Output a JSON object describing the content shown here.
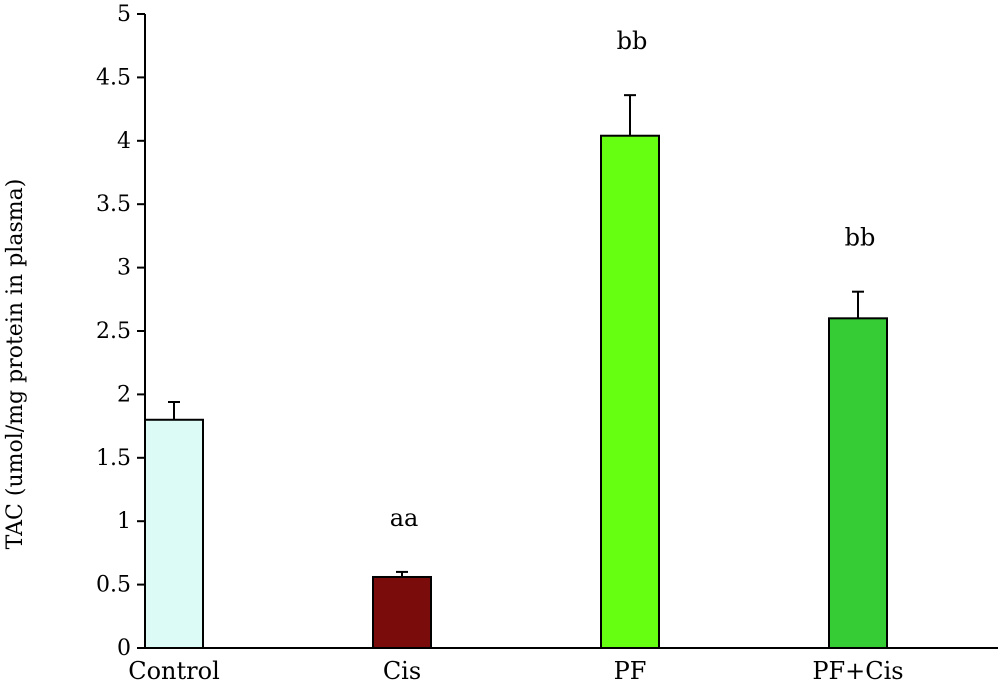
{
  "chart_data": {
    "type": "bar",
    "title": "",
    "xlabel": "",
    "ylabel": "TAC (umol/mg protein in plasma)",
    "ylim": [
      0,
      5
    ],
    "yticks": [
      0,
      0.5,
      1,
      1.5,
      2,
      2.5,
      3,
      3.5,
      4,
      4.5,
      5
    ],
    "ytick_labels": [
      "0",
      "0.5",
      "1",
      "1.5",
      "2",
      "2.5",
      "3",
      "3.5",
      "4",
      "4.5",
      "5"
    ],
    "grid": false,
    "legend": "none",
    "categories": [
      "Control",
      "Cis",
      "PF",
      "PF+Cis"
    ],
    "values": [
      1.8,
      0.56,
      4.04,
      2.6
    ],
    "errors": [
      0.14,
      0.04,
      0.32,
      0.21
    ],
    "annotations": [
      "",
      "aa",
      "bb",
      "bb"
    ],
    "colors": [
      "#dcfaf6",
      "#7a0c0c",
      "#66ff11",
      "#36cc36"
    ]
  }
}
